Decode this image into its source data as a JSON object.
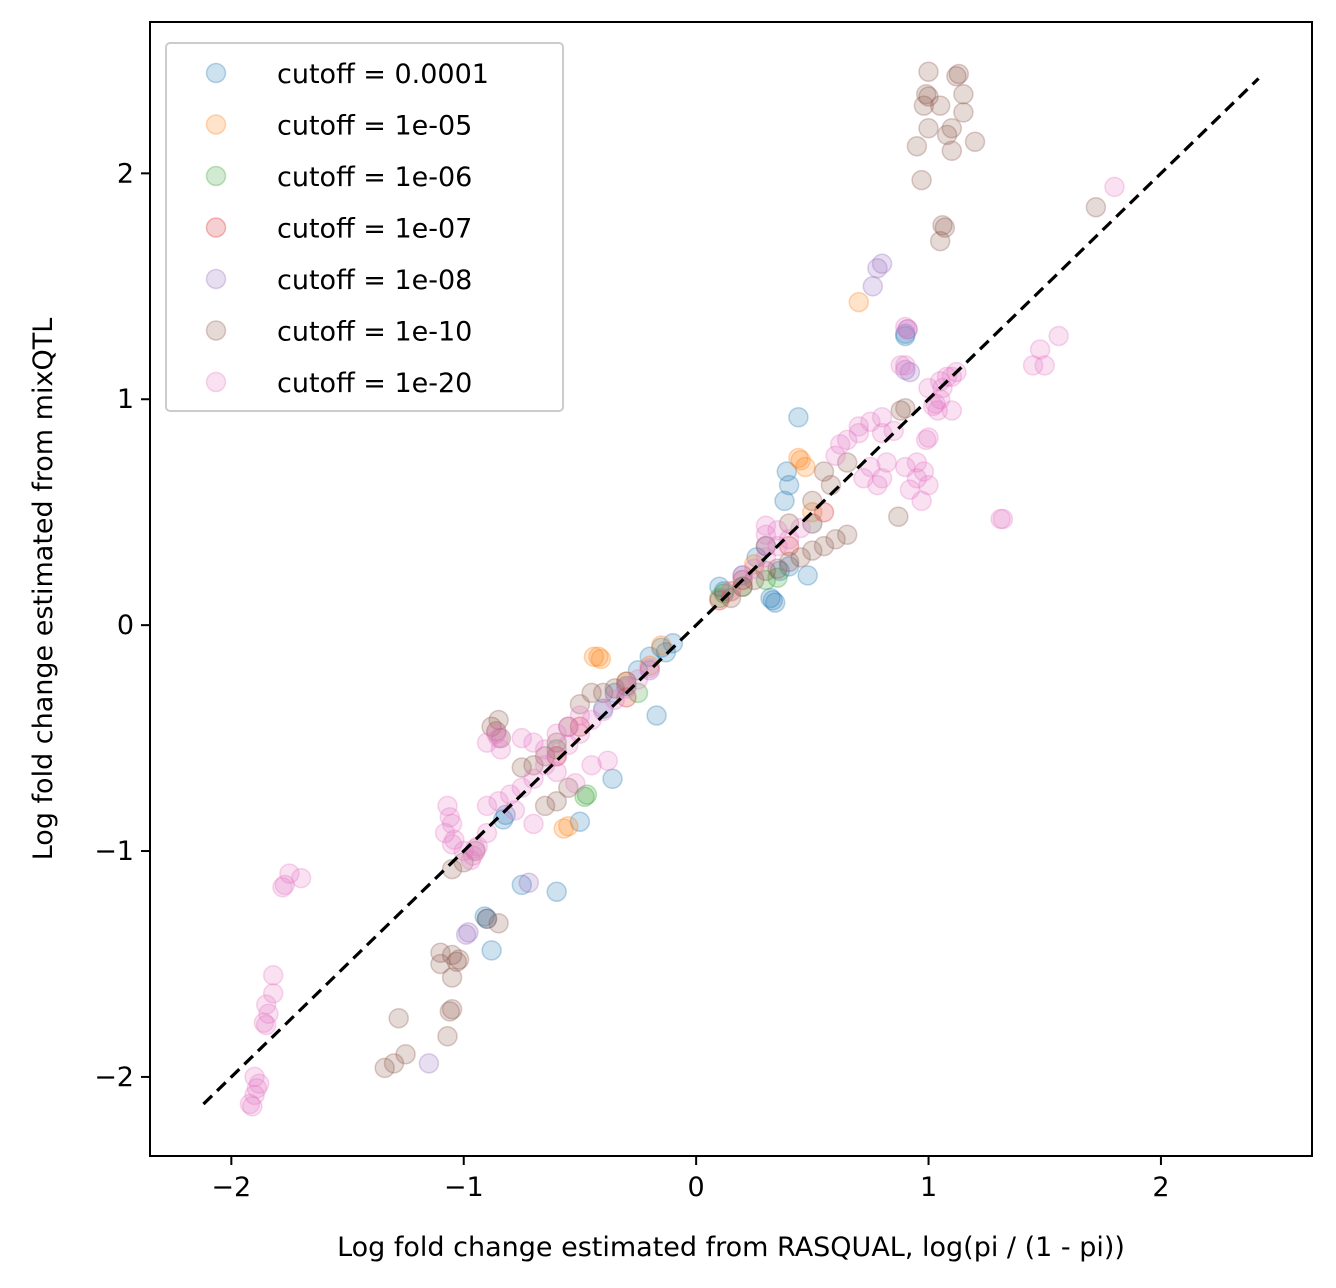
{
  "chart_data": {
    "type": "scatter",
    "title": "",
    "xlabel": "Log fold change estimated from RASQUAL, log(pi / (1 - pi))",
    "ylabel": "Log fold change estimated from mixQTL",
    "xlim": [
      -2.35,
      2.65
    ],
    "ylim": [
      -2.35,
      2.67
    ],
    "xticks": [
      -2,
      -1,
      0,
      1,
      2
    ],
    "yticks": [
      -2,
      -1,
      0,
      1,
      2
    ],
    "xtick_labels": [
      "−2",
      "−1",
      "0",
      "1",
      "2"
    ],
    "ytick_labels": [
      "−2",
      "−1",
      "0",
      "1",
      "2"
    ],
    "grid": false,
    "legend_position": "upper-left",
    "reference_line": {
      "style": "dashed",
      "color": "#000000",
      "from": [
        -2.12,
        -2.12
      ],
      "to": [
        2.42,
        2.42
      ]
    },
    "series": [
      {
        "name": "cutoff = 0.0001",
        "color": "#1f77b4",
        "points": [
          [
            0.33,
            0.11
          ],
          [
            0.34,
            0.1
          ],
          [
            0.32,
            0.12
          ],
          [
            0.1,
            0.17
          ],
          [
            0.12,
            0.15
          ],
          [
            0.36,
            0.24
          ],
          [
            0.4,
            0.26
          ],
          [
            0.48,
            0.22
          ],
          [
            0.39,
            0.68
          ],
          [
            0.4,
            0.62
          ],
          [
            0.38,
            0.55
          ],
          [
            0.44,
            0.92
          ],
          [
            0.9,
            1.29
          ],
          [
            0.9,
            1.28
          ],
          [
            -0.1,
            -0.08
          ],
          [
            -0.13,
            -0.12
          ],
          [
            -0.15,
            -0.1
          ],
          [
            -0.2,
            -0.14
          ],
          [
            -0.25,
            -0.2
          ],
          [
            -0.3,
            -0.27
          ],
          [
            -0.35,
            -0.3
          ],
          [
            -0.4,
            -0.37
          ],
          [
            -0.17,
            -0.4
          ],
          [
            -0.36,
            -0.68
          ],
          [
            -0.5,
            -0.87
          ],
          [
            -0.83,
            -0.86
          ],
          [
            -0.82,
            -0.84
          ],
          [
            -0.91,
            -1.29
          ],
          [
            -0.9,
            -1.3
          ],
          [
            -0.6,
            -1.18
          ],
          [
            -0.75,
            -1.15
          ],
          [
            -0.88,
            -1.44
          ],
          [
            0.2,
            0.22
          ],
          [
            0.26,
            0.3
          ]
        ]
      },
      {
        "name": "cutoff = 1e-05",
        "color": "#ff7f0e",
        "points": [
          [
            -0.42,
            -0.14
          ],
          [
            -0.44,
            -0.14
          ],
          [
            -0.41,
            -0.15
          ],
          [
            0.45,
            0.73
          ],
          [
            0.44,
            0.74
          ],
          [
            0.47,
            0.7
          ],
          [
            0.7,
            1.43
          ],
          [
            -0.55,
            -0.89
          ],
          [
            -0.57,
            -0.9
          ],
          [
            -0.2,
            -0.18
          ],
          [
            -0.15,
            -0.09
          ],
          [
            -0.3,
            -0.25
          ],
          [
            0.15,
            0.15
          ],
          [
            0.25,
            0.27
          ],
          [
            0.5,
            0.5
          ]
        ]
      },
      {
        "name": "cutoff = 1e-06",
        "color": "#2ca02c",
        "points": [
          [
            -0.47,
            -0.75
          ],
          [
            -0.48,
            -0.76
          ],
          [
            0.1,
            0.12
          ],
          [
            0.12,
            0.14
          ],
          [
            0.2,
            0.17
          ],
          [
            0.3,
            0.2
          ],
          [
            0.35,
            0.21
          ],
          [
            -0.25,
            -0.3
          ],
          [
            -0.6,
            -0.55
          ],
          [
            0.5,
            0.45
          ]
        ]
      },
      {
        "name": "cutoff = 1e-07",
        "color": "#d62728",
        "points": [
          [
            0.1,
            0.11
          ],
          [
            0.2,
            0.2
          ],
          [
            -0.3,
            -0.32
          ],
          [
            -0.5,
            -0.45
          ],
          [
            0.4,
            0.35
          ],
          [
            -0.6,
            -0.58
          ],
          [
            0.55,
            0.5
          ]
        ]
      },
      {
        "name": "cutoff = 1e-08",
        "color": "#9467bd",
        "points": [
          [
            0.8,
            1.6
          ],
          [
            0.78,
            1.58
          ],
          [
            0.76,
            1.5
          ],
          [
            0.92,
            1.12
          ],
          [
            0.9,
            1.13
          ],
          [
            0.91,
            1.31
          ],
          [
            -0.98,
            -1.36
          ],
          [
            -0.99,
            -1.37
          ],
          [
            -1.15,
            -1.94
          ],
          [
            -0.72,
            -1.14
          ],
          [
            -0.2,
            -0.2
          ],
          [
            0.3,
            0.35
          ]
        ]
      },
      {
        "name": "cutoff = 1e-10",
        "color": "#8c564b",
        "points": [
          [
            1.13,
            2.44
          ],
          [
            1.12,
            2.43
          ],
          [
            0.99,
            2.35
          ],
          [
            1.0,
            2.34
          ],
          [
            1.15,
            2.35
          ],
          [
            1.08,
            2.17
          ],
          [
            1.0,
            2.45
          ],
          [
            0.98,
            2.3
          ],
          [
            1.05,
            2.3
          ],
          [
            1.1,
            2.2
          ],
          [
            1.15,
            2.27
          ],
          [
            1.2,
            2.14
          ],
          [
            1.1,
            2.1
          ],
          [
            1.0,
            2.2
          ],
          [
            0.95,
            2.12
          ],
          [
            0.97,
            1.97
          ],
          [
            1.06,
            1.77
          ],
          [
            1.07,
            1.76
          ],
          [
            1.05,
            1.7
          ],
          [
            1.72,
            1.85
          ],
          [
            0.87,
            0.48
          ],
          [
            0.9,
            0.96
          ],
          [
            0.88,
            0.95
          ],
          [
            0.65,
            0.4
          ],
          [
            0.6,
            0.38
          ],
          [
            0.55,
            0.35
          ],
          [
            0.5,
            0.33
          ],
          [
            0.45,
            0.3
          ],
          [
            0.4,
            0.28
          ],
          [
            0.35,
            0.25
          ],
          [
            0.3,
            0.24
          ],
          [
            0.25,
            0.2
          ],
          [
            0.2,
            0.17
          ],
          [
            0.15,
            0.12
          ],
          [
            0.3,
            0.35
          ],
          [
            0.4,
            0.45
          ],
          [
            0.5,
            0.55
          ],
          [
            0.58,
            0.62
          ],
          [
            0.55,
            0.68
          ],
          [
            0.65,
            0.72
          ],
          [
            -0.45,
            -0.3
          ],
          [
            -0.5,
            -0.35
          ],
          [
            -0.55,
            -0.45
          ],
          [
            -0.6,
            -0.52
          ],
          [
            -0.65,
            -0.58
          ],
          [
            -0.7,
            -0.62
          ],
          [
            -0.4,
            -0.3
          ],
          [
            -0.35,
            -0.28
          ],
          [
            -0.3,
            -0.25
          ],
          [
            -0.85,
            -0.42
          ],
          [
            -0.86,
            -0.47
          ],
          [
            -0.84,
            -0.5
          ],
          [
            -0.88,
            -0.45
          ],
          [
            -0.75,
            -0.63
          ],
          [
            -0.6,
            -0.78
          ],
          [
            -0.65,
            -0.8
          ],
          [
            -0.55,
            -0.72
          ],
          [
            -1.02,
            -1.48
          ],
          [
            -1.03,
            -1.49
          ],
          [
            -1.05,
            -1.46
          ],
          [
            -1.1,
            -1.45
          ],
          [
            -1.1,
            -1.5
          ],
          [
            -1.05,
            -1.56
          ],
          [
            -1.05,
            -1.7
          ],
          [
            -1.06,
            -1.71
          ],
          [
            -1.07,
            -1.82
          ],
          [
            -1.25,
            -1.9
          ],
          [
            -1.3,
            -1.94
          ],
          [
            -1.34,
            -1.96
          ],
          [
            -1.28,
            -1.74
          ],
          [
            -0.9,
            -1.3
          ],
          [
            -0.85,
            -1.32
          ],
          [
            -1.0,
            -1.05
          ],
          [
            -1.05,
            -1.08
          ],
          [
            -0.95,
            -1.0
          ]
        ]
      },
      {
        "name": "cutoff = 1e-20",
        "color": "#e377c2",
        "points": [
          [
            -1.92,
            -2.12
          ],
          [
            -1.91,
            -2.13
          ],
          [
            -1.9,
            -2.08
          ],
          [
            -1.89,
            -2.05
          ],
          [
            -1.88,
            -2.03
          ],
          [
            -1.9,
            -2.0
          ],
          [
            -1.85,
            -1.77
          ],
          [
            -1.86,
            -1.76
          ],
          [
            -1.85,
            -1.68
          ],
          [
            -1.84,
            -1.72
          ],
          [
            -1.82,
            -1.63
          ],
          [
            -1.82,
            -1.55
          ],
          [
            -1.78,
            -1.16
          ],
          [
            -1.77,
            -1.15
          ],
          [
            -1.75,
            -1.1
          ],
          [
            -1.7,
            -1.12
          ],
          [
            -1.07,
            -0.8
          ],
          [
            -1.06,
            -0.85
          ],
          [
            -1.05,
            -0.88
          ],
          [
            -1.08,
            -0.92
          ],
          [
            -1.04,
            -0.95
          ],
          [
            -0.95,
            -0.99
          ],
          [
            -0.96,
            -1.02
          ],
          [
            -0.97,
            -1.04
          ],
          [
            -1.05,
            -0.97
          ],
          [
            -0.94,
            -0.98
          ],
          [
            -1.0,
            -1.0
          ],
          [
            -0.9,
            -0.8
          ],
          [
            -0.85,
            -0.78
          ],
          [
            -0.8,
            -0.75
          ],
          [
            -0.75,
            -0.72
          ],
          [
            -0.78,
            -0.82
          ],
          [
            -0.7,
            -0.68
          ],
          [
            -0.65,
            -0.62
          ],
          [
            -0.6,
            -0.58
          ],
          [
            -0.55,
            -0.53
          ],
          [
            -0.5,
            -0.48
          ],
          [
            -0.85,
            -0.5
          ],
          [
            -0.84,
            -0.55
          ],
          [
            -0.86,
            -0.48
          ],
          [
            -0.9,
            -0.52
          ],
          [
            -0.7,
            -0.52
          ],
          [
            -0.75,
            -0.5
          ],
          [
            -0.45,
            -0.42
          ],
          [
            -0.4,
            -0.38
          ],
          [
            -0.35,
            -0.33
          ],
          [
            -0.3,
            -0.28
          ],
          [
            -0.25,
            -0.24
          ],
          [
            -0.2,
            -0.19
          ],
          [
            -0.5,
            -0.4
          ],
          [
            -0.55,
            -0.45
          ],
          [
            -0.6,
            -0.48
          ],
          [
            -0.65,
            -0.55
          ],
          [
            -0.38,
            -0.6
          ],
          [
            -0.45,
            -0.62
          ],
          [
            -0.6,
            -0.65
          ],
          [
            -0.52,
            -0.7
          ],
          [
            -0.7,
            -0.88
          ],
          [
            -0.9,
            -0.92
          ],
          [
            0.15,
            0.15
          ],
          [
            0.2,
            0.22
          ],
          [
            0.25,
            0.25
          ],
          [
            0.3,
            0.3
          ],
          [
            0.35,
            0.35
          ],
          [
            0.4,
            0.38
          ],
          [
            0.45,
            0.43
          ],
          [
            0.5,
            0.45
          ],
          [
            0.35,
            0.42
          ],
          [
            0.3,
            0.4
          ],
          [
            0.3,
            0.44
          ],
          [
            0.6,
            0.75
          ],
          [
            0.62,
            0.8
          ],
          [
            0.65,
            0.82
          ],
          [
            0.7,
            0.85
          ],
          [
            0.75,
            0.9
          ],
          [
            0.8,
            0.85
          ],
          [
            0.7,
            0.88
          ],
          [
            0.85,
            0.86
          ],
          [
            0.8,
            0.92
          ],
          [
            0.75,
            0.7
          ],
          [
            0.72,
            0.65
          ],
          [
            0.8,
            0.65
          ],
          [
            0.82,
            0.72
          ],
          [
            0.78,
            0.62
          ],
          [
            0.9,
            0.7
          ],
          [
            0.95,
            0.72
          ],
          [
            0.92,
            0.6
          ],
          [
            0.98,
            0.68
          ],
          [
            1.0,
            0.62
          ],
          [
            0.95,
            0.65
          ],
          [
            0.97,
            0.55
          ],
          [
            1.0,
            0.83
          ],
          [
            0.99,
            0.82
          ],
          [
            1.02,
            0.97
          ],
          [
            1.03,
            0.98
          ],
          [
            1.04,
            0.95
          ],
          [
            1.05,
            1.0
          ],
          [
            1.06,
            1.05
          ],
          [
            1.08,
            1.1
          ],
          [
            1.1,
            1.1
          ],
          [
            1.12,
            1.12
          ],
          [
            1.05,
            1.08
          ],
          [
            1.0,
            1.05
          ],
          [
            1.1,
            0.95
          ],
          [
            0.9,
            1.15
          ],
          [
            0.88,
            1.15
          ],
          [
            0.9,
            1.32
          ],
          [
            0.91,
            1.31
          ],
          [
            1.31,
            0.47
          ],
          [
            1.32,
            0.47
          ],
          [
            1.45,
            1.15
          ],
          [
            1.48,
            1.22
          ],
          [
            1.5,
            1.15
          ],
          [
            1.56,
            1.28
          ],
          [
            1.8,
            1.94
          ]
        ]
      }
    ]
  }
}
